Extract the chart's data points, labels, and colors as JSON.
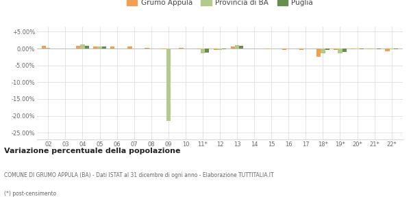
{
  "categories": [
    "02",
    "03",
    "04",
    "05",
    "06",
    "07",
    "08",
    "09",
    "10",
    "11*",
    "12",
    "13",
    "14",
    "15",
    "16",
    "17",
    "18*",
    "19*",
    "20*",
    "21*",
    "22*"
  ],
  "grumo": [
    0.8,
    0.1,
    0.8,
    0.7,
    0.6,
    0.6,
    0.2,
    -0.1,
    0.3,
    -0.3,
    -0.5,
    0.7,
    0.05,
    -0.1,
    -0.5,
    -0.5,
    -2.5,
    -0.5,
    -0.3,
    -0.2,
    -0.8
  ],
  "provincia": [
    0.2,
    0.1,
    1.2,
    0.7,
    0.1,
    0.1,
    0.05,
    -21.5,
    0.1,
    -1.5,
    -0.5,
    1.1,
    0.1,
    0.05,
    0.05,
    0.05,
    -1.5,
    -1.5,
    -0.2,
    -0.2,
    -0.2
  ],
  "puglia": [
    0.1,
    0.05,
    0.8,
    0.6,
    0.1,
    0.1,
    0.05,
    -0.05,
    0.1,
    -1.2,
    -0.3,
    0.8,
    0.1,
    0.05,
    0.05,
    0.05,
    -0.5,
    -1.0,
    -0.2,
    -0.2,
    -0.2
  ],
  "grumo_color": "#f0a050",
  "provincia_color": "#b5c98a",
  "puglia_color": "#6a8c4f",
  "bg_color": "#ffffff",
  "grid_color": "#d8d8d8",
  "title": "Variazione percentuale della popolazione",
  "subtitle": "COMUNE DI GRUMO APPULA (BA) - Dati ISTAT al 31 dicembre di ogni anno - Elaborazione TUTTITALIA.IT",
  "footnote": "(*) post-censimento",
  "ylim": [
    -27.0,
    6.5
  ],
  "yticks": [
    5.0,
    0.0,
    -5.0,
    -10.0,
    -15.0,
    -20.0,
    -25.0
  ],
  "ytick_labels": [
    "+5.00%",
    "0.00%",
    "-5.00%",
    "-10.00%",
    "-15.00%",
    "-20.00%",
    "-25.00%"
  ],
  "bar_width": 0.25,
  "legend_grumo": "Grumo Appula",
  "legend_provincia": "Provincia di BA",
  "legend_puglia": "Puglia"
}
